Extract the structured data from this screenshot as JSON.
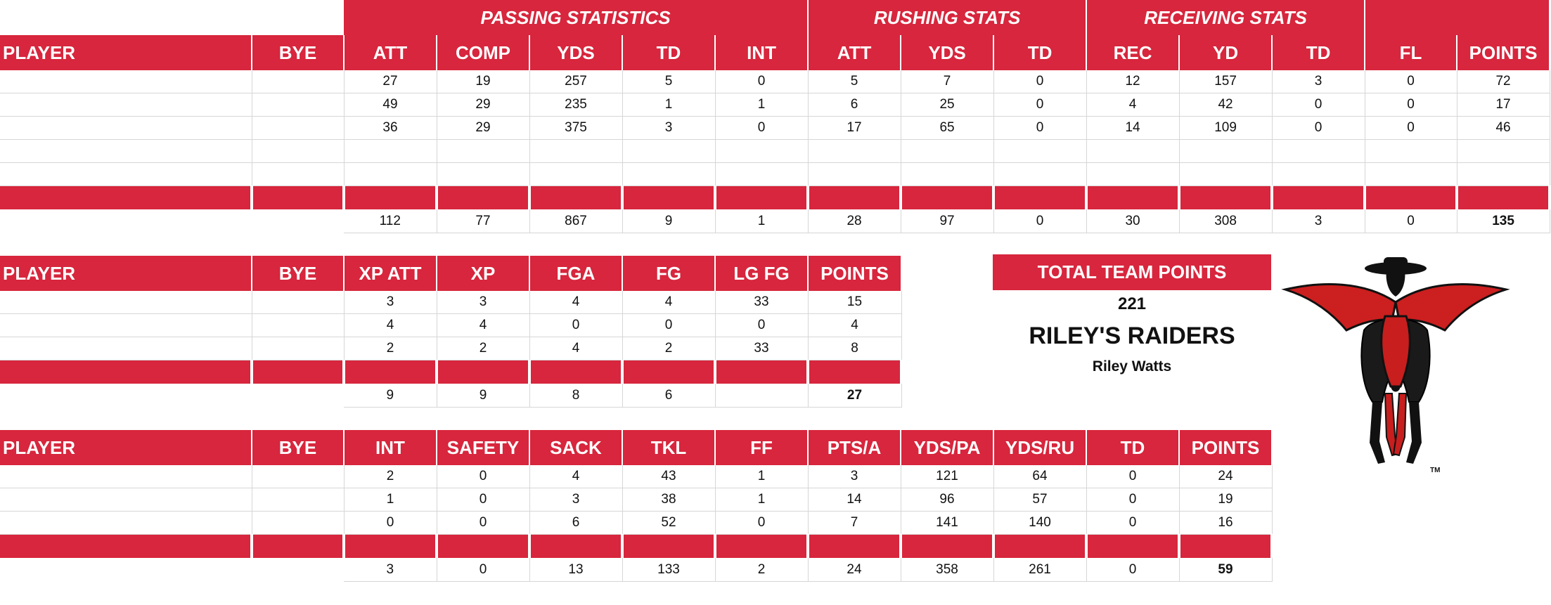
{
  "offense": {
    "groups": [
      "PASSING STATISTICS",
      "RUSHING STATS",
      "RECEIVING STATS"
    ],
    "headers": [
      "PLAYER",
      "BYE",
      "ATT",
      "COMP",
      "YDS",
      "TD",
      "INT",
      "ATT",
      "YDS",
      "TD",
      "REC",
      "YD",
      "TD",
      "FL",
      "POINTS"
    ],
    "rows": [
      [
        "",
        "",
        "27",
        "19",
        "257",
        "5",
        "0",
        "5",
        "7",
        "0",
        "12",
        "157",
        "3",
        "0",
        "72"
      ],
      [
        "",
        "",
        "49",
        "29",
        "235",
        "1",
        "1",
        "6",
        "25",
        "0",
        "4",
        "42",
        "0",
        "0",
        "17"
      ],
      [
        "",
        "",
        "36",
        "29",
        "375",
        "3",
        "0",
        "17",
        "65",
        "0",
        "14",
        "109",
        "0",
        "0",
        "46"
      ],
      [
        "",
        "",
        "",
        "",
        "",
        "",
        "",
        "",
        "",
        "",
        "",
        "",
        "",
        "",
        ""
      ],
      [
        "",
        "",
        "",
        "",
        "",
        "",
        "",
        "",
        "",
        "",
        "",
        "",
        "",
        "",
        ""
      ]
    ],
    "totals": [
      "",
      "",
      "112",
      "77",
      "867",
      "9",
      "1",
      "28",
      "97",
      "0",
      "30",
      "308",
      "3",
      "0",
      "135"
    ]
  },
  "kicking": {
    "headers": [
      "PLAYER",
      "BYE",
      "XP ATT",
      "XP",
      "FGA",
      "FG",
      "LG FG",
      "POINTS"
    ],
    "rows": [
      [
        "",
        "",
        "3",
        "3",
        "4",
        "4",
        "33",
        "15"
      ],
      [
        "",
        "",
        "4",
        "4",
        "0",
        "0",
        "0",
        "4"
      ],
      [
        "",
        "",
        "2",
        "2",
        "4",
        "2",
        "33",
        "8"
      ]
    ],
    "totals": [
      "",
      "",
      "9",
      "9",
      "8",
      "6",
      "",
      "27"
    ]
  },
  "defense": {
    "headers": [
      "PLAYER",
      "BYE",
      "INT",
      "SAFETY",
      "SACK",
      "TKL",
      "FF",
      "PTS/A",
      "YDS/PA",
      "YDS/RU",
      "TD",
      "POINTS"
    ],
    "rows": [
      [
        "",
        "",
        "2",
        "0",
        "4",
        "43",
        "1",
        "3",
        "121",
        "64",
        "0",
        "24"
      ],
      [
        "",
        "",
        "1",
        "0",
        "3",
        "38",
        "1",
        "14",
        "96",
        "57",
        "0",
        "19"
      ],
      [
        "",
        "",
        "0",
        "0",
        "6",
        "52",
        "0",
        "7",
        "141",
        "140",
        "0",
        "16"
      ]
    ],
    "totals": [
      "",
      "",
      "3",
      "0",
      "13",
      "133",
      "2",
      "24",
      "358",
      "261",
      "0",
      "59"
    ]
  },
  "summary": {
    "total_label": "TOTAL TEAM POINTS",
    "total_value": "221",
    "team_name": "RILEY'S RAIDERS",
    "owner": "Riley Watts"
  },
  "logo": {
    "icon": "masked-rider-horse-logo",
    "trademark": "TM"
  },
  "colors": {
    "accent": "#d7263d",
    "grid": "#d6d6d6"
  }
}
